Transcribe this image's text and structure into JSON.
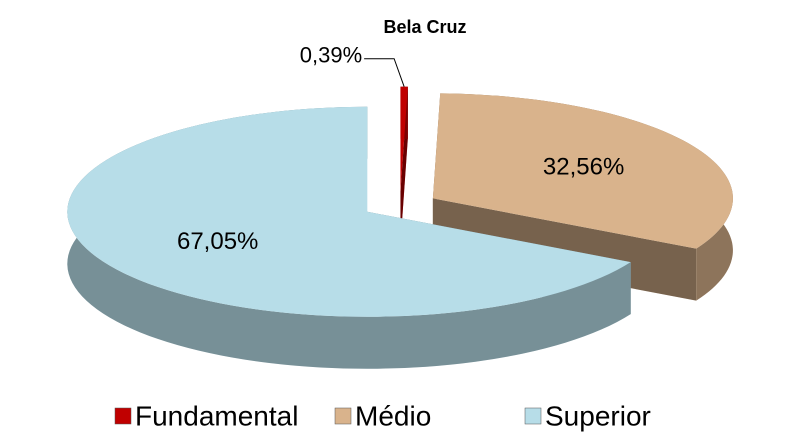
{
  "chart_data": {
    "type": "pie",
    "subtitle": "Bela Cruz",
    "categories": [
      "Fundamental",
      "Médio",
      "Superior"
    ],
    "values": [
      0.39,
      32.56,
      67.05
    ],
    "value_labels": [
      "0,39%",
      "32,56%",
      "67,05%"
    ],
    "colors": [
      "#c00000",
      "#d9b38c",
      "#b7dde8"
    ],
    "legend": "bottom"
  }
}
